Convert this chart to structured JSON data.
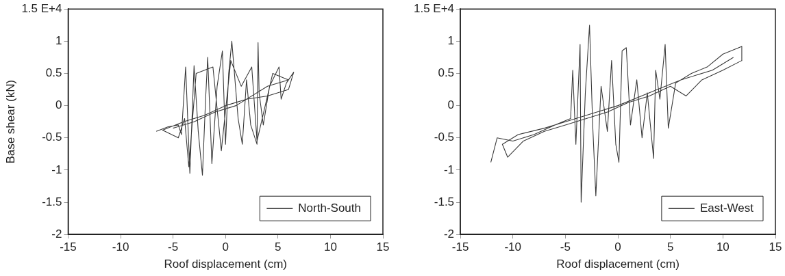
{
  "chart_data": [
    {
      "type": "line",
      "xlabel": "Roof displacement (cm)",
      "ylabel": "Base shear (kN)",
      "xlim": [
        -15,
        15
      ],
      "xticks": [
        -15,
        -10,
        -5,
        0,
        5,
        10,
        15
      ],
      "ylim": [
        -2,
        1.5
      ],
      "yticks": [
        -2,
        -1.5,
        -1,
        -0.5,
        0,
        0.5,
        1,
        {
          "value": 1.5,
          "label": "1.5 E+4"
        }
      ],
      "grid": false,
      "legend": "bottom right",
      "marker": "none",
      "line_style": "solid",
      "series": [
        {
          "name": "North-South",
          "color": "#3a3a3a",
          "x": [
            -6.6,
            -5.5,
            -4.5,
            -4.2,
            -3.8,
            -3.4,
            -3.0,
            -2.6,
            -2.2,
            -1.9,
            -1.7,
            -1.3,
            -0.8,
            -0.3,
            0.0,
            0.3,
            0.6,
            1.2,
            1.6,
            2.0,
            2.4,
            3.0,
            3.1,
            3.2,
            3.6,
            4.2,
            5.1,
            5.3,
            5.8,
            6.5,
            6.0,
            4.0,
            2.0,
            0.0,
            -2.0,
            -4.0,
            -6.0,
            -4.5,
            -3.9,
            -3.5,
            -2.8,
            -1.2,
            -0.4,
            0.5,
            1.5,
            2.5,
            3.0,
            4.5,
            6.0,
            4.0,
            1.0,
            -1.0,
            -3.0,
            -5.0
          ],
          "values": [
            -0.4,
            -0.33,
            -0.3,
            -0.45,
            0.6,
            -1.05,
            0.62,
            -0.4,
            -1.08,
            0.1,
            0.75,
            -0.9,
            0.3,
            0.85,
            -0.6,
            0.5,
            1.0,
            -0.2,
            -0.6,
            0.4,
            -0.3,
            -0.6,
            0.98,
            0.2,
            -0.3,
            0.3,
            0.6,
            0.1,
            0.35,
            0.52,
            0.25,
            0.15,
            0.1,
            0.0,
            -0.15,
            -0.25,
            -0.38,
            -0.5,
            -0.2,
            -0.95,
            0.5,
            0.6,
            -0.7,
            0.7,
            0.3,
            0.6,
            -0.55,
            0.5,
            0.4,
            0.3,
            0.0,
            -0.1,
            -0.25,
            -0.35
          ]
        }
      ]
    },
    {
      "type": "line",
      "xlabel": "Roof displacement (cm)",
      "xlim": [
        -15,
        15
      ],
      "xticks": [
        -15,
        -10,
        -5,
        0,
        5,
        10,
        15
      ],
      "ylim": [
        -2,
        1.5
      ],
      "yticks": [
        -2,
        -1.5,
        -1,
        -0.5,
        0,
        0.5,
        1,
        {
          "value": 1.5,
          "label": "1.5 E+4"
        }
      ],
      "grid": false,
      "legend": "bottom right",
      "marker": "none",
      "line_style": "solid",
      "series": [
        {
          "name": "East-West",
          "color": "#3a3a3a",
          "x": [
            -12.1,
            -11.5,
            -10,
            -8,
            -6,
            -4.5,
            -4.3,
            -4.0,
            -3.6,
            -3.5,
            -3.1,
            -2.7,
            -2.4,
            -2.1,
            -1.6,
            -1.0,
            -0.6,
            -0.2,
            0.1,
            0.4,
            0.8,
            1.2,
            1.8,
            2.3,
            2.8,
            3.4,
            3.6,
            4.0,
            4.5,
            4.8,
            5.5,
            7,
            8.5,
            10,
            11.8,
            11.8,
            10,
            8,
            6.5,
            5,
            3,
            1,
            -1,
            -3,
            -5,
            -7,
            -9,
            -10.5,
            -11,
            -9.5,
            -7,
            -5,
            -2,
            0,
            3,
            6,
            9,
            11
          ],
          "values": [
            -0.88,
            -0.5,
            -0.55,
            -0.45,
            -0.3,
            -0.2,
            0.55,
            -0.6,
            0.95,
            -1.5,
            0.2,
            1.25,
            -0.3,
            -1.4,
            0.3,
            -0.4,
            0.7,
            -0.6,
            -0.88,
            0.85,
            0.9,
            -0.3,
            0.4,
            -0.5,
            0.2,
            -0.82,
            0.55,
            0.1,
            0.95,
            -0.35,
            0.35,
            0.5,
            0.6,
            0.8,
            0.92,
            0.7,
            0.55,
            0.4,
            0.15,
            0.3,
            0.15,
            0.05,
            -0.1,
            -0.2,
            -0.3,
            -0.4,
            -0.55,
            -0.8,
            -0.6,
            -0.45,
            -0.35,
            -0.25,
            -0.1,
            0.0,
            0.2,
            0.4,
            0.55,
            0.75
          ]
        }
      ]
    }
  ]
}
